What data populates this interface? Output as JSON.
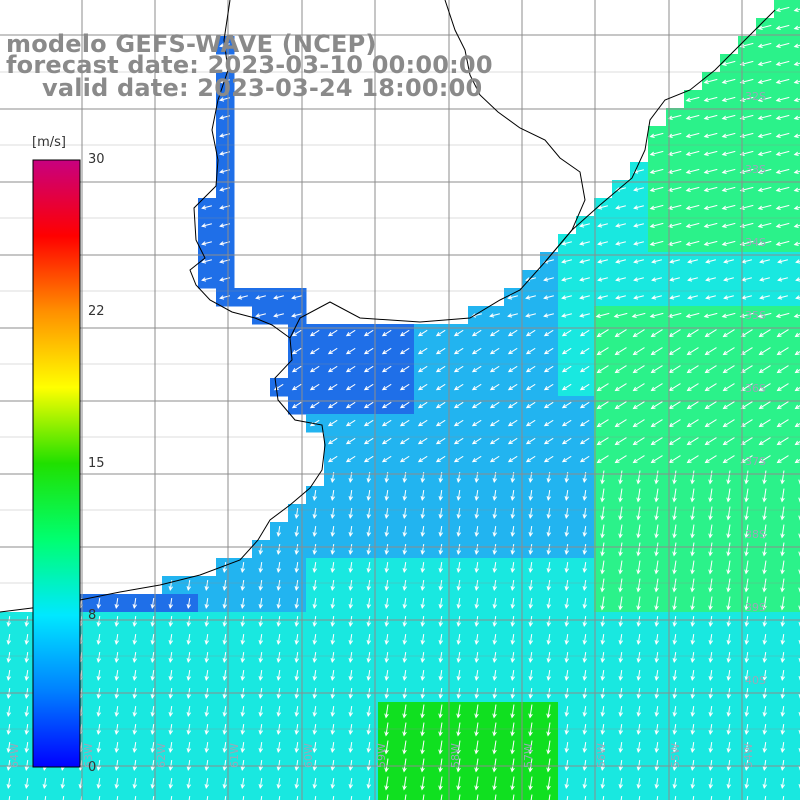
{
  "title": {
    "line1": "modelo GEFS-WAVE (NCEP)",
    "line2": "forecast date: 2023-03-10 00:00:00",
    "line3": "valid date: 2023-03-24 18:00:00"
  },
  "colorbar": {
    "unit_label": "[m/s]",
    "ticks": [
      {
        "value": 30,
        "label": "30"
      },
      {
        "value": 22,
        "label": "22"
      },
      {
        "value": 15,
        "label": "15"
      },
      {
        "value": 8,
        "label": "8"
      },
      {
        "value": 0,
        "label": "0"
      }
    ],
    "range": [
      0,
      30
    ],
    "colors": [
      "#0000ff",
      "#0080ff",
      "#00e8ff",
      "#00ff70",
      "#20e000",
      "#ffff00",
      "#ff9000",
      "#ff0000",
      "#c80080"
    ]
  },
  "map": {
    "lat_labels": [
      "32S",
      "33S",
      "34S",
      "35S",
      "36S",
      "37S",
      "38S",
      "39S",
      "40S"
    ],
    "lon_labels": [
      "64W",
      "63W",
      "62W",
      "61W",
      "60W",
      "59W",
      "58W",
      "57W",
      "56W",
      "55W",
      "54W"
    ],
    "field_colors": {
      "calm": "#1f6fe8",
      "light": "#22b4f0",
      "moderate": "#19e8e0",
      "fresh": "#2bf28a",
      "strong": "#10e020"
    },
    "arrow_color": "#ffffff",
    "coast_color": "#000000",
    "grid_color": "#8c8c8c",
    "wind_direction": "southward"
  }
}
